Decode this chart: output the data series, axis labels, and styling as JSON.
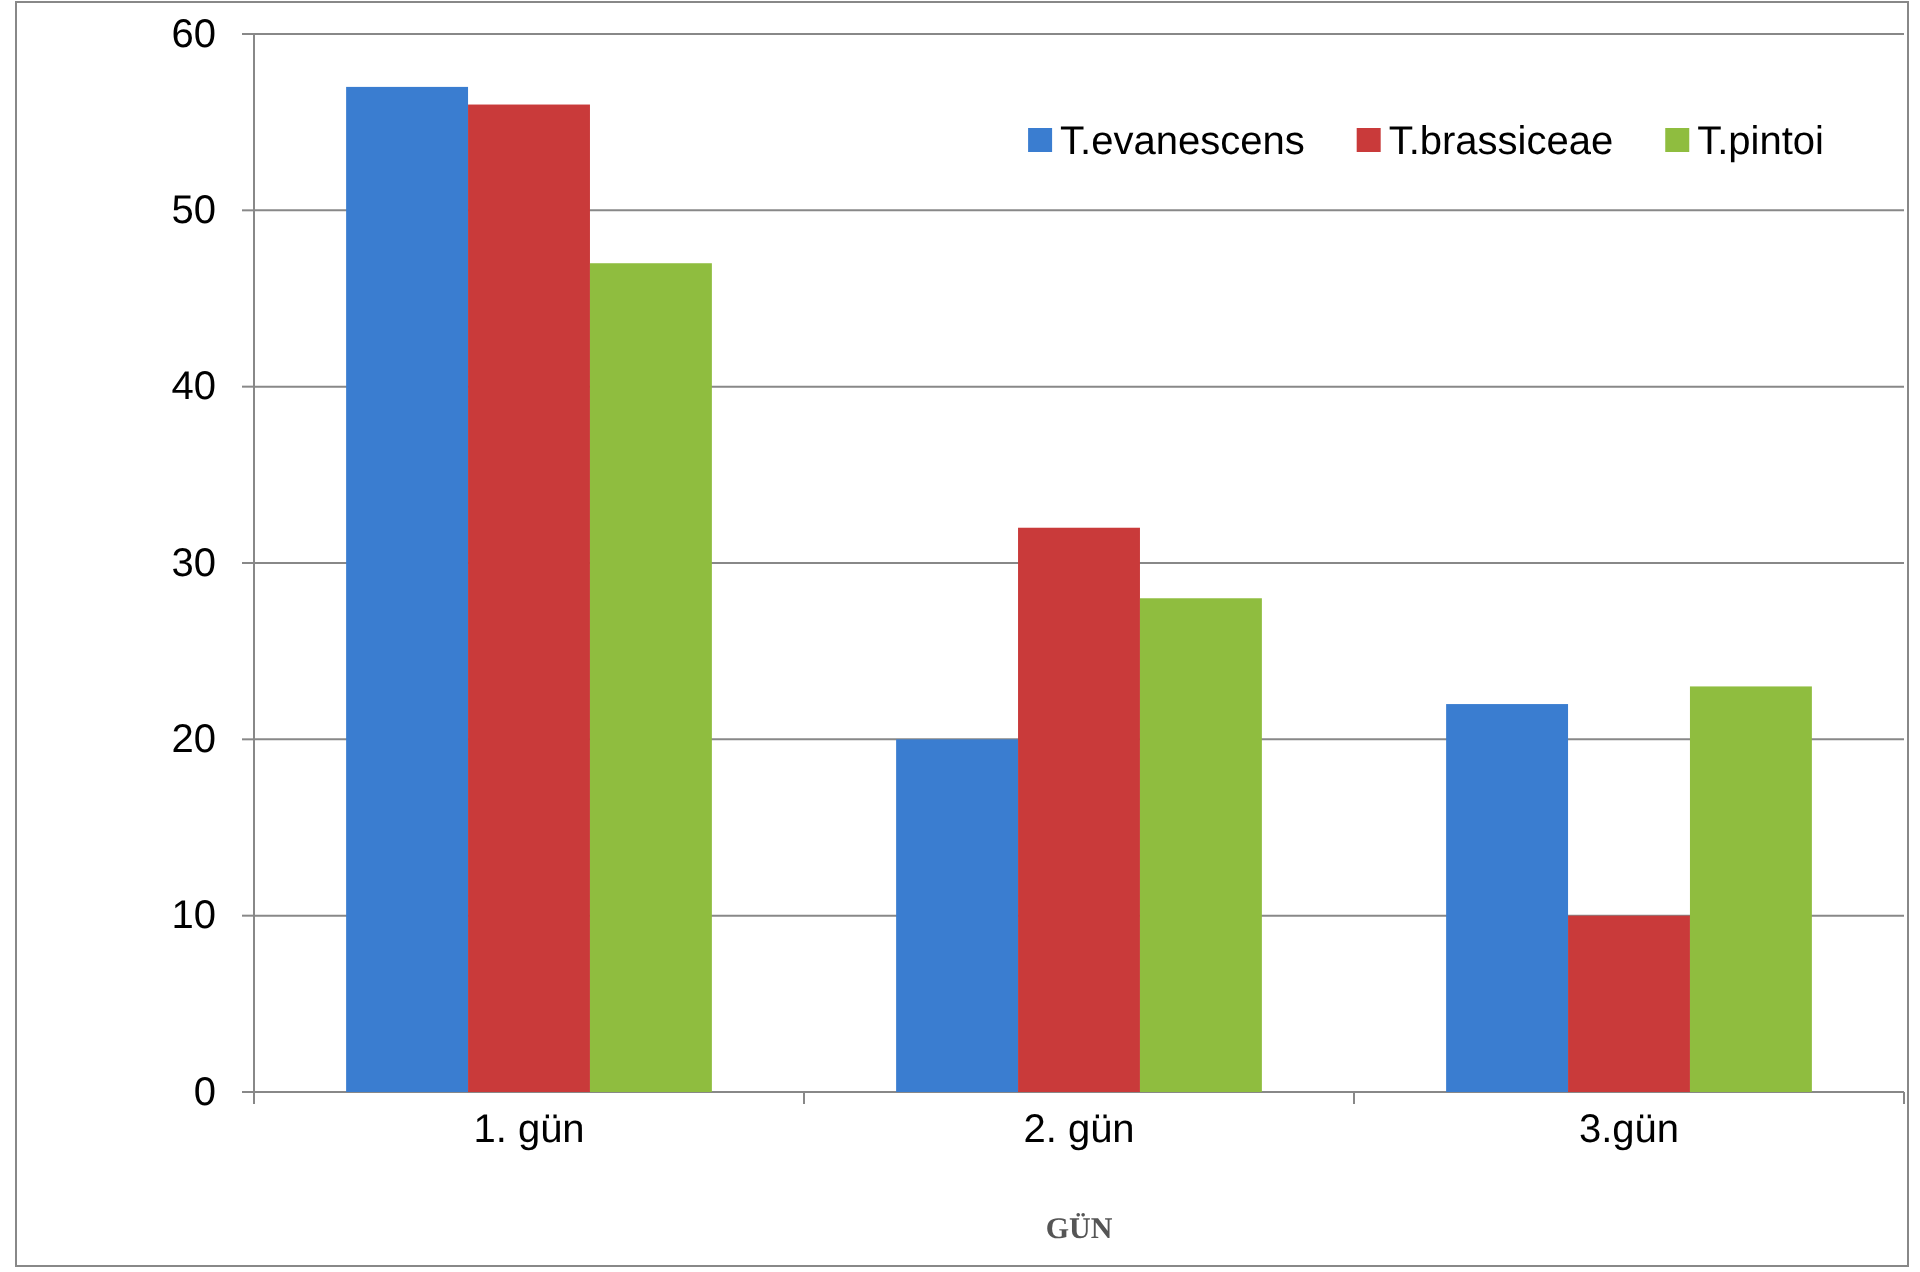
{
  "chart_data": {
    "type": "bar",
    "xlabel": "GÜN",
    "categories": [
      "1. gün",
      "2. gün",
      "3.gün"
    ],
    "series": [
      {
        "name": "T.evanescens",
        "color": "#3a7dd0",
        "values": [
          57,
          20,
          22
        ]
      },
      {
        "name": "T.brassiceae",
        "color": "#c93a3a",
        "values": [
          56,
          32,
          10
        ]
      },
      {
        "name": "T.pintoi",
        "color": "#8fbd3f",
        "values": [
          47,
          28,
          23
        ]
      }
    ],
    "ylim": [
      0,
      60
    ],
    "yticks": [
      0,
      10,
      20,
      30,
      40,
      50,
      60
    ],
    "grid": "y",
    "legend": "top right"
  }
}
